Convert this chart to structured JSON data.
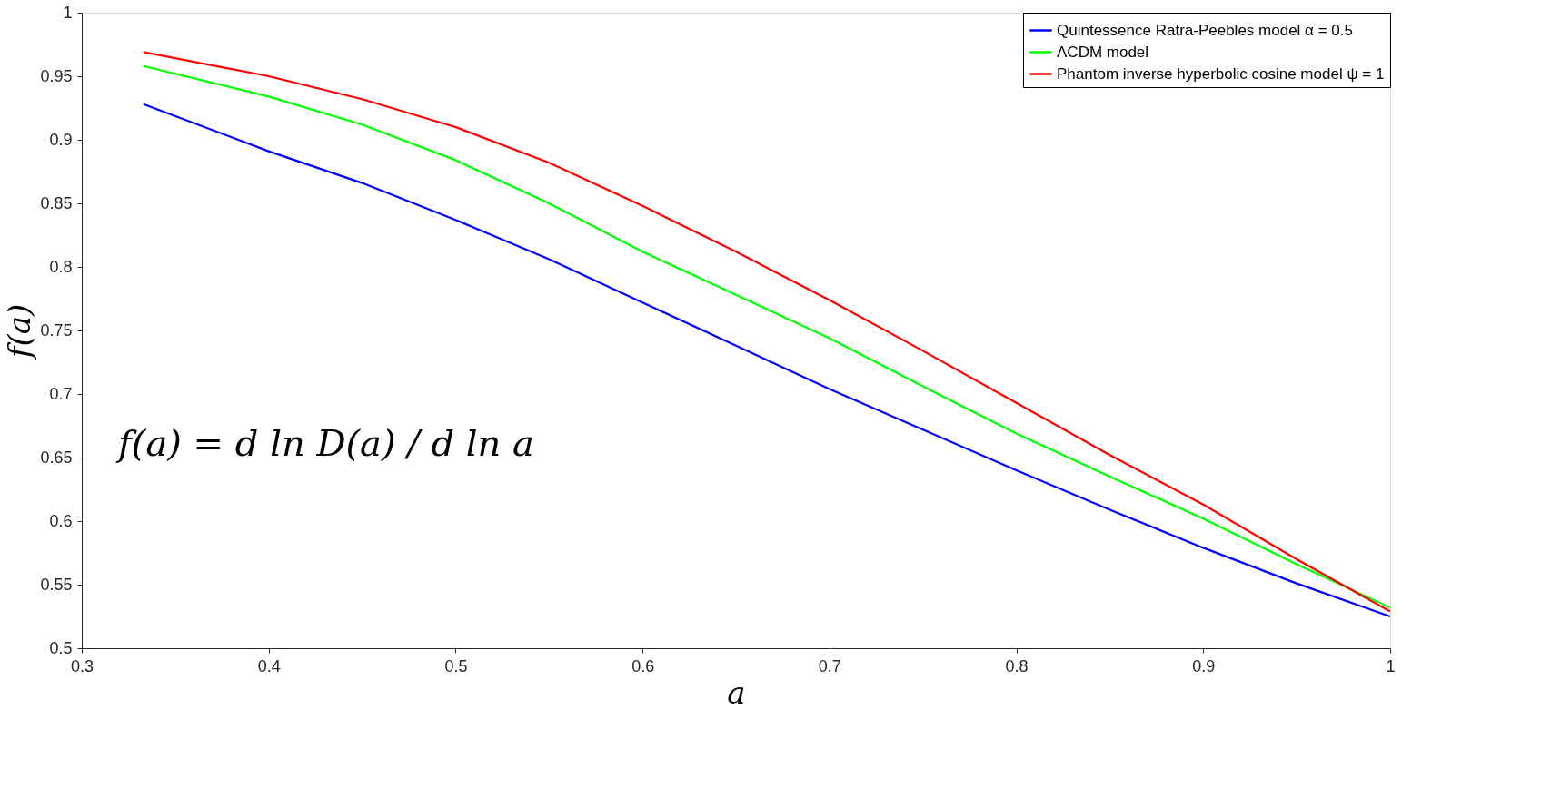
{
  "chart_data": {
    "type": "line",
    "xlabel": "a",
    "ylabel": "f(a)",
    "x": [
      0.333,
      0.4,
      0.45,
      0.5,
      0.55,
      0.6,
      0.65,
      0.7,
      0.75,
      0.8,
      0.85,
      0.9,
      0.95,
      1.0
    ],
    "series": [
      {
        "name": "Quintessence Ratra-Peebles model α = 0.5",
        "color": "#0000ff",
        "values": [
          0.928,
          0.891,
          0.866,
          0.837,
          0.806,
          0.772,
          0.738,
          0.704,
          0.672,
          0.64,
          0.609,
          0.579,
          0.551,
          0.525
        ]
      },
      {
        "name": "ΛCDM model",
        "color": "#00ff00",
        "values": [
          0.958,
          0.934,
          0.912,
          0.884,
          0.85,
          0.812,
          0.778,
          0.744,
          0.706,
          0.669,
          0.635,
          0.602,
          0.566,
          0.532
        ]
      },
      {
        "name": "Phantom inverse hyperbolic cosine model ψ = 1",
        "color": "#ff0000",
        "values": [
          0.969,
          0.95,
          0.932,
          0.91,
          0.882,
          0.848,
          0.812,
          0.774,
          0.734,
          0.693,
          0.652,
          0.613,
          0.57,
          0.529
        ]
      }
    ],
    "xlim": [
      0.3,
      1.0
    ],
    "xticks": [
      0.3,
      0.4,
      0.5,
      0.6,
      0.7,
      0.8,
      0.9,
      1
    ],
    "ylim": [
      0.5,
      1.0
    ],
    "yticks": [
      0.5,
      0.55,
      0.6,
      0.65,
      0.7,
      0.75,
      0.8,
      0.85,
      0.9,
      0.95,
      1
    ],
    "grid": false,
    "legend": "top right",
    "marker": "none",
    "line_style": "solid",
    "annotations": [
      "f(a) = d ln D(a) / d ln a"
    ]
  }
}
